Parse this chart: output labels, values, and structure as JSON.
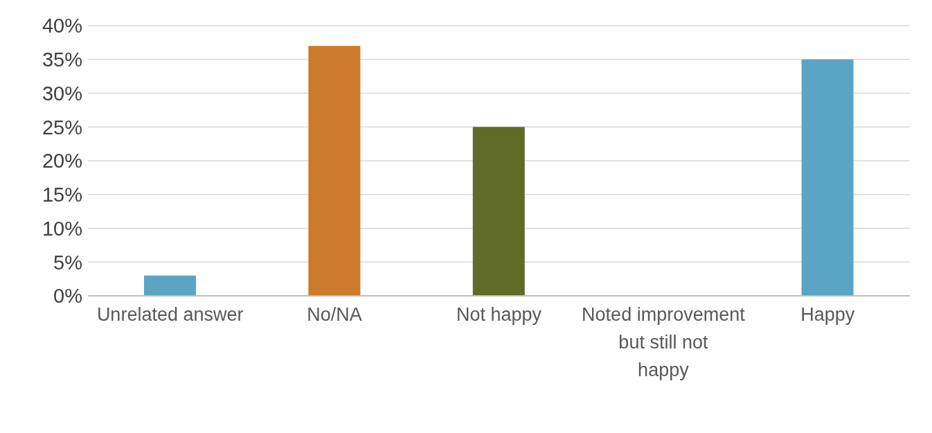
{
  "chart_data": {
    "type": "bar",
    "categories": [
      "Unrelated answer",
      "No/NA",
      "Not happy",
      "Noted improvement but still not happy",
      "Happy"
    ],
    "values": [
      3,
      37,
      25,
      0,
      35
    ],
    "colors": [
      "#5ba5c4",
      "#cc7a2b",
      "#5f6b27",
      "#5f6b27",
      "#5ba5c4"
    ],
    "ylim": [
      0,
      40
    ],
    "yticks": [
      {
        "value": 0,
        "label": "0%"
      },
      {
        "value": 5,
        "label": "5%"
      },
      {
        "value": 10,
        "label": "10%"
      },
      {
        "value": 15,
        "label": "15%"
      },
      {
        "value": 20,
        "label": "20%"
      },
      {
        "value": 25,
        "label": "25%"
      },
      {
        "value": 30,
        "label": "30%"
      },
      {
        "value": 35,
        "label": "35%"
      },
      {
        "value": 40,
        "label": "40%"
      }
    ],
    "grid": "y",
    "legend": false
  }
}
